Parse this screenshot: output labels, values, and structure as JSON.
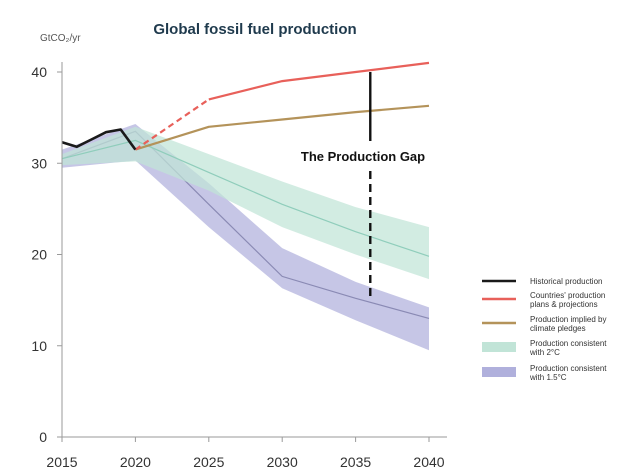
{
  "chart_data": {
    "type": "line",
    "title": "Global fossil fuel production",
    "ylabel": "GtCO₂/yr",
    "xlabel": "",
    "xlim": [
      2015,
      2040
    ],
    "ylim": [
      0,
      40
    ],
    "x_ticks": [
      2015,
      2020,
      2025,
      2030,
      2035,
      2040
    ],
    "y_ticks": [
      0,
      10,
      20,
      30,
      40
    ],
    "grid": false,
    "legend_position": "right",
    "annotation": {
      "text": "The Production Gap",
      "x": 2036,
      "y_top": 40,
      "y_bottom": 15
    },
    "series": [
      {
        "name": "Production consistent with 1.5°C",
        "kind": "band",
        "color": "#b0b0dc",
        "line_color": "#8a8ab4",
        "x": [
          2015,
          2020,
          2025,
          2030,
          2035,
          2040
        ],
        "lower": [
          29.5,
          30.3,
          23.0,
          16.3,
          12.8,
          9.5
        ],
        "upper": [
          31.5,
          34.3,
          27.8,
          20.7,
          17.0,
          14.2
        ],
        "values": [
          30.5,
          33.5,
          25.5,
          17.6,
          15.2,
          13.0
        ]
      },
      {
        "name": "Production consistent with 2°C",
        "kind": "band",
        "color": "#c1e4d7",
        "line_color": "#8fcdbb",
        "x": [
          2015,
          2020,
          2025,
          2030,
          2035,
          2040
        ],
        "lower": [
          29.8,
          30.2,
          27.0,
          23.0,
          20.0,
          17.3
        ],
        "upper": [
          31.0,
          34.0,
          31.0,
          28.0,
          25.2,
          23.0
        ],
        "values": [
          30.5,
          32.5,
          29.0,
          25.5,
          22.5,
          19.8
        ]
      },
      {
        "name": "Production implied by climate pledges",
        "kind": "line",
        "color": "#b4935a",
        "x": [
          2020,
          2025,
          2030,
          2035,
          2040
        ],
        "values": [
          31.5,
          34.0,
          34.8,
          35.6,
          36.3
        ]
      },
      {
        "name": "Countries' production plans & projections",
        "kind": "line",
        "color": "#e8605a",
        "dashed_until": 2025,
        "x": [
          2020,
          2025,
          2030,
          2035,
          2040
        ],
        "values": [
          31.5,
          37.0,
          39.0,
          40.0,
          41.0
        ]
      },
      {
        "name": "Historical production",
        "kind": "line",
        "color": "#1a1a1a",
        "x": [
          2015,
          2016,
          2017,
          2018,
          2019,
          2020
        ],
        "values": [
          32.3,
          31.8,
          32.6,
          33.4,
          33.7,
          31.5
        ]
      }
    ],
    "legend": [
      {
        "label": "Historical production",
        "color": "#1a1a1a",
        "kind": "line"
      },
      {
        "label": "Countries' production plans & projections",
        "color": "#e8605a",
        "kind": "line"
      },
      {
        "label": "Production implied by climate pledges",
        "color": "#b4935a",
        "kind": "line"
      },
      {
        "label": "Production consistent with 2°C",
        "color": "#c1e4d7",
        "kind": "band"
      },
      {
        "label": "Production consistent with 1.5°C",
        "color": "#b0b0dc",
        "kind": "band"
      }
    ]
  }
}
